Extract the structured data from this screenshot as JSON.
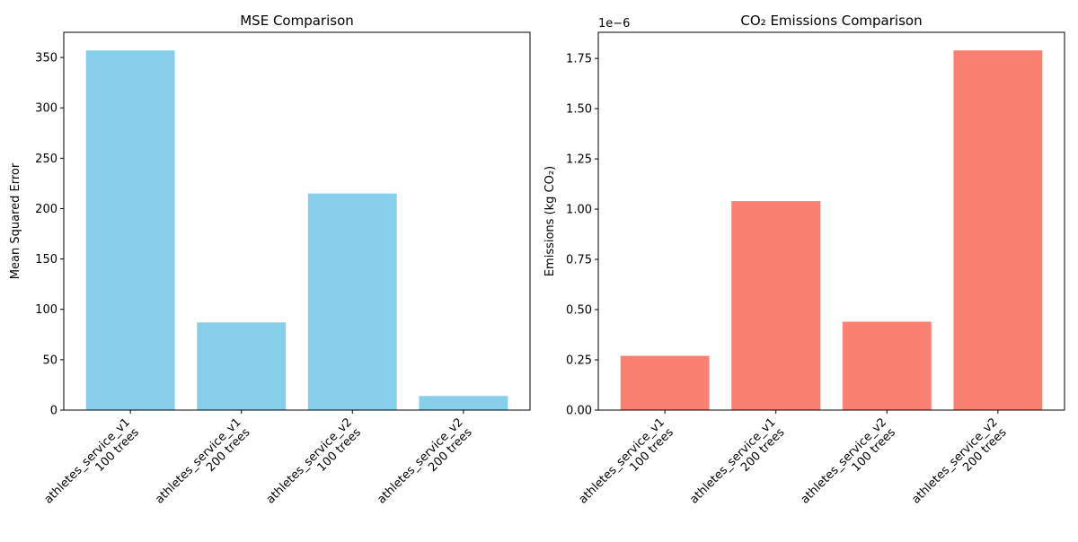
{
  "chart_data": [
    {
      "type": "bar",
      "title": "MSE Comparison",
      "xlabel": "",
      "ylabel": "Mean Squared Error",
      "categories": [
        [
          "athletes_service_v1",
          "100 trees"
        ],
        [
          "athletes_service_v1",
          "200 trees"
        ],
        [
          "athletes_service_v2",
          "100 trees"
        ],
        [
          "athletes_service_v2",
          "200 trees"
        ]
      ],
      "values": [
        357,
        87,
        215,
        14
      ],
      "ylim": [
        0,
        375
      ],
      "yticks": [
        0,
        50,
        100,
        150,
        200,
        250,
        300,
        350
      ],
      "ytick_labels": [
        "0",
        "50",
        "100",
        "150",
        "200",
        "250",
        "300",
        "350"
      ],
      "offset_text": "",
      "color": "#87ceeb",
      "grid": false
    },
    {
      "type": "bar",
      "title": "CO₂ Emissions Comparison",
      "xlabel": "",
      "ylabel": "Emissions (kg CO₂)",
      "categories": [
        [
          "athletes_service_v1",
          "100 trees"
        ],
        [
          "athletes_service_v1",
          "200 trees"
        ],
        [
          "athletes_service_v2",
          "100 trees"
        ],
        [
          "athletes_service_v2",
          "200 trees"
        ]
      ],
      "values": [
        2.7e-07,
        1.04e-06,
        4.4e-07,
        1.79e-06
      ],
      "ylim": [
        0,
        1.88e-06
      ],
      "yticks": [
        0,
        2.5e-07,
        5e-07,
        7.5e-07,
        1e-06,
        1.25e-06,
        1.5e-06,
        1.75e-06
      ],
      "ytick_labels": [
        "0.00",
        "0.25",
        "0.50",
        "0.75",
        "1.00",
        "1.25",
        "1.50",
        "1.75"
      ],
      "offset_text": "1e−6",
      "color": "#fa8072",
      "grid": false
    }
  ]
}
